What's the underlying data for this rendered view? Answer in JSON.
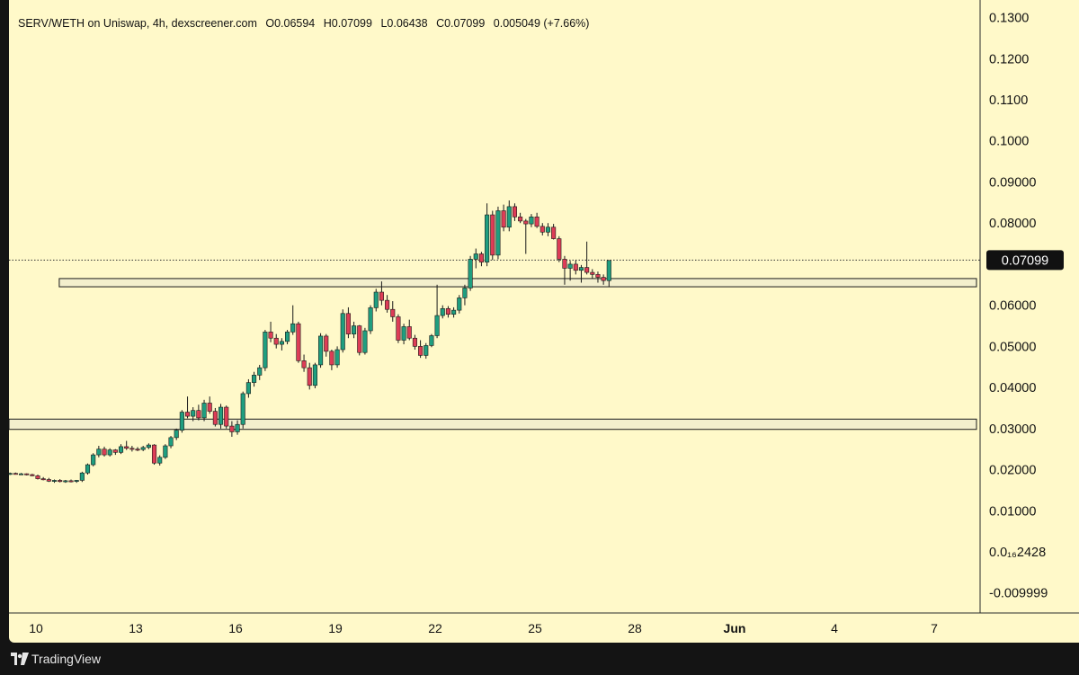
{
  "header": {
    "pair": "SERV/WETH on Uniswap, 4h, dexscreener.com",
    "open": "O0.06594",
    "high": "H0.07099",
    "low": "L0.06438",
    "close": "C0.07099",
    "change": "0.005049 (+7.66%)"
  },
  "last_price_label": "0.07099",
  "footer": {
    "brand": "TradingView"
  },
  "colors": {
    "background": "#fff9c9",
    "up": "#1f9e7f",
    "down": "#dd3d56",
    "zone_fill": "#f3efcd",
    "price_line": "#333333",
    "label_bg": "#111111"
  },
  "chart_data": {
    "type": "candlestick",
    "title": "SERV/WETH on Uniswap, 4h, dexscreener.com",
    "timeframe": "4h",
    "y_ticks": [
      "0.1300",
      "0.1200",
      "0.1100",
      "0.1000",
      "0.09000",
      "0.08000",
      "0.07000",
      "0.06000",
      "0.05000",
      "0.04000",
      "0.03000",
      "0.02000",
      "0.01000",
      "0.0₁₆2428",
      "-0.009999"
    ],
    "y_range": [
      -0.014,
      0.131
    ],
    "x_ticks": [
      {
        "label": "10",
        "day": 10
      },
      {
        "label": "13",
        "day": 13
      },
      {
        "label": "16",
        "day": 16
      },
      {
        "label": "19",
        "day": 19
      },
      {
        "label": "22",
        "day": 22
      },
      {
        "label": "25",
        "day": 25
      },
      {
        "label": "28",
        "day": 28
      },
      {
        "label": "Jun",
        "day": 31,
        "bold": true
      },
      {
        "label": "4",
        "day": 34
      },
      {
        "label": "7",
        "day": 37
      }
    ],
    "last_price": 0.07099,
    "zones": [
      {
        "from_day": 10.7,
        "to_day": 39.2,
        "low": 0.0645,
        "high": 0.0665
      },
      {
        "from_day": 9.0,
        "to_day": 39.2,
        "low": 0.0298,
        "high": 0.0323
      }
    ],
    "start_day": 9.0,
    "candle_step_days": 0.1667,
    "ohlc": [
      [
        0.0195,
        0.0197,
        0.0188,
        0.019
      ],
      [
        0.019,
        0.0193,
        0.0187,
        0.0191
      ],
      [
        0.0191,
        0.0193,
        0.0188,
        0.0189
      ],
      [
        0.0189,
        0.0192,
        0.0187,
        0.019
      ],
      [
        0.019,
        0.0191,
        0.0186,
        0.0188
      ],
      [
        0.0188,
        0.019,
        0.0184,
        0.0185
      ],
      [
        0.0185,
        0.0188,
        0.0176,
        0.0178
      ],
      [
        0.0178,
        0.0182,
        0.0174,
        0.0176
      ],
      [
        0.0176,
        0.018,
        0.017,
        0.0172
      ],
      [
        0.0172,
        0.0176,
        0.0168,
        0.0174
      ],
      [
        0.0174,
        0.0177,
        0.0169,
        0.0171
      ],
      [
        0.0171,
        0.0175,
        0.0168,
        0.0173
      ],
      [
        0.0173,
        0.0176,
        0.0169,
        0.0172
      ],
      [
        0.0172,
        0.0175,
        0.0168,
        0.0174
      ],
      [
        0.0174,
        0.0195,
        0.017,
        0.0192
      ],
      [
        0.0192,
        0.0215,
        0.0188,
        0.0212
      ],
      [
        0.0212,
        0.024,
        0.0208,
        0.0236
      ],
      [
        0.0236,
        0.0258,
        0.023,
        0.025
      ],
      [
        0.025,
        0.0256,
        0.0232,
        0.0236
      ],
      [
        0.0236,
        0.0252,
        0.0232,
        0.0248
      ],
      [
        0.0248,
        0.025,
        0.0236,
        0.0242
      ],
      [
        0.0242,
        0.0262,
        0.0238,
        0.0256
      ],
      [
        0.0256,
        0.027,
        0.0248,
        0.0252
      ],
      [
        0.0252,
        0.0258,
        0.0244,
        0.025
      ],
      [
        0.025,
        0.0255,
        0.0245,
        0.0249
      ],
      [
        0.0249,
        0.0258,
        0.0245,
        0.0254
      ],
      [
        0.0254,
        0.0264,
        0.025,
        0.026
      ],
      [
        0.026,
        0.0262,
        0.0212,
        0.0216
      ],
      [
        0.0216,
        0.0235,
        0.021,
        0.023
      ],
      [
        0.023,
        0.0262,
        0.0226,
        0.0258
      ],
      [
        0.0258,
        0.0282,
        0.0252,
        0.0278
      ],
      [
        0.0278,
        0.03,
        0.0272,
        0.0296
      ],
      [
        0.0296,
        0.0345,
        0.029,
        0.034
      ],
      [
        0.034,
        0.0378,
        0.0325,
        0.033
      ],
      [
        0.033,
        0.0352,
        0.0318,
        0.0344
      ],
      [
        0.0344,
        0.0358,
        0.032,
        0.0326
      ],
      [
        0.0326,
        0.037,
        0.0318,
        0.0362
      ],
      [
        0.0362,
        0.0378,
        0.0336,
        0.0342
      ],
      [
        0.0342,
        0.035,
        0.0305,
        0.031
      ],
      [
        0.031,
        0.036,
        0.03,
        0.0352
      ],
      [
        0.0352,
        0.0356,
        0.03,
        0.0306
      ],
      [
        0.0306,
        0.0318,
        0.028,
        0.0292
      ],
      [
        0.0292,
        0.032,
        0.0285,
        0.031
      ],
      [
        0.031,
        0.039,
        0.03,
        0.0385
      ],
      [
        0.0385,
        0.042,
        0.0375,
        0.0412
      ],
      [
        0.0412,
        0.0438,
        0.0402,
        0.043
      ],
      [
        0.043,
        0.0455,
        0.0418,
        0.0448
      ],
      [
        0.0448,
        0.054,
        0.044,
        0.0535
      ],
      [
        0.0535,
        0.056,
        0.051,
        0.052
      ],
      [
        0.052,
        0.053,
        0.0495,
        0.0505
      ],
      [
        0.0505,
        0.052,
        0.049,
        0.0512
      ],
      [
        0.0512,
        0.054,
        0.0505,
        0.0535
      ],
      [
        0.0535,
        0.06,
        0.0528,
        0.0555
      ],
      [
        0.0555,
        0.056,
        0.046,
        0.0465
      ],
      [
        0.0465,
        0.048,
        0.0438,
        0.0448
      ],
      [
        0.0448,
        0.046,
        0.0395,
        0.0405
      ],
      [
        0.0405,
        0.046,
        0.0398,
        0.0455
      ],
      [
        0.0455,
        0.0532,
        0.0448,
        0.0525
      ],
      [
        0.0525,
        0.053,
        0.0475,
        0.0488
      ],
      [
        0.0488,
        0.0492,
        0.0442,
        0.0455
      ],
      [
        0.0455,
        0.05,
        0.0448,
        0.0492
      ],
      [
        0.0492,
        0.059,
        0.0485,
        0.058
      ],
      [
        0.058,
        0.0595,
        0.052,
        0.053
      ],
      [
        0.053,
        0.056,
        0.052,
        0.055
      ],
      [
        0.055,
        0.0552,
        0.0478,
        0.0485
      ],
      [
        0.0485,
        0.0545,
        0.048,
        0.0538
      ],
      [
        0.0538,
        0.06,
        0.053,
        0.0594
      ],
      [
        0.0594,
        0.064,
        0.0585,
        0.0632
      ],
      [
        0.0632,
        0.0658,
        0.06,
        0.0612
      ],
      [
        0.0612,
        0.0625,
        0.0582,
        0.059
      ],
      [
        0.059,
        0.061,
        0.056,
        0.0572
      ],
      [
        0.0572,
        0.0578,
        0.0508,
        0.0515
      ],
      [
        0.0515,
        0.0555,
        0.0505,
        0.0548
      ],
      [
        0.0548,
        0.0565,
        0.0515,
        0.052
      ],
      [
        0.052,
        0.0528,
        0.0492,
        0.05
      ],
      [
        0.05,
        0.0515,
        0.0472,
        0.0478
      ],
      [
        0.0478,
        0.0508,
        0.047,
        0.0502
      ],
      [
        0.0502,
        0.053,
        0.0498,
        0.0526
      ],
      [
        0.0526,
        0.065,
        0.052,
        0.0575
      ],
      [
        0.0575,
        0.06,
        0.0568,
        0.0592
      ],
      [
        0.0592,
        0.0598,
        0.057,
        0.0578
      ],
      [
        0.0578,
        0.0595,
        0.057,
        0.0588
      ],
      [
        0.0588,
        0.0625,
        0.058,
        0.0618
      ],
      [
        0.0618,
        0.065,
        0.06,
        0.0642
      ],
      [
        0.0642,
        0.072,
        0.0635,
        0.0712
      ],
      [
        0.0712,
        0.0738,
        0.069,
        0.0725
      ],
      [
        0.0725,
        0.073,
        0.0695,
        0.0705
      ],
      [
        0.0705,
        0.0848,
        0.0695,
        0.082
      ],
      [
        0.082,
        0.083,
        0.071,
        0.0722
      ],
      [
        0.0722,
        0.084,
        0.0712,
        0.083
      ],
      [
        0.083,
        0.0845,
        0.078,
        0.079
      ],
      [
        0.079,
        0.0855,
        0.078,
        0.084
      ],
      [
        0.084,
        0.0848,
        0.0805,
        0.0815
      ],
      [
        0.0815,
        0.0825,
        0.08,
        0.0805
      ],
      [
        0.0805,
        0.081,
        0.0725,
        0.0798
      ],
      [
        0.0798,
        0.0822,
        0.079,
        0.0815
      ],
      [
        0.0815,
        0.0825,
        0.0788,
        0.0792
      ],
      [
        0.0792,
        0.08,
        0.077,
        0.0778
      ],
      [
        0.0778,
        0.08,
        0.0768,
        0.079
      ],
      [
        0.079,
        0.0798,
        0.076,
        0.0762
      ],
      [
        0.0762,
        0.0768,
        0.0705,
        0.0712
      ],
      [
        0.0712,
        0.072,
        0.065,
        0.069
      ],
      [
        0.069,
        0.0708,
        0.066,
        0.07
      ],
      [
        0.07,
        0.071,
        0.0675,
        0.0685
      ],
      [
        0.0685,
        0.0698,
        0.0655,
        0.0692
      ],
      [
        0.0692,
        0.0755,
        0.0675,
        0.068
      ],
      [
        0.068,
        0.0688,
        0.0665,
        0.0675
      ],
      [
        0.0675,
        0.0682,
        0.0655,
        0.0668
      ],
      [
        0.0668,
        0.0675,
        0.065,
        0.066
      ],
      [
        0.066,
        0.0709,
        0.0644,
        0.0709
      ]
    ]
  }
}
